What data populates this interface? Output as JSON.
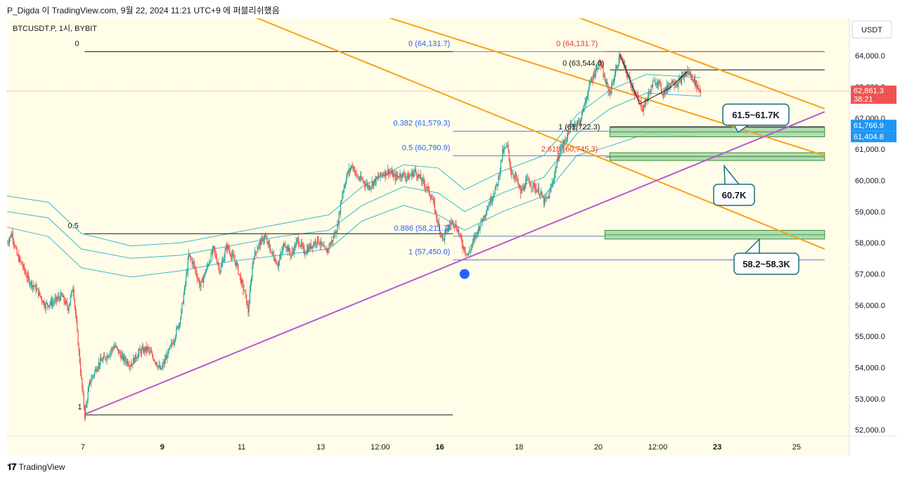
{
  "header": {
    "caption": "P_Digda 이 TradingView.com, 9월 22, 2024 11:21 UTC+9 에 퍼블리쉬했음"
  },
  "footer": {
    "brand": "TradingView",
    "logo_glyph": "𝟏𝟕"
  },
  "chart_data": {
    "type": "candlestick",
    "symbol": "BTCUSDT.P, 1시, BYBIT",
    "currency": "USDT",
    "ylim": [
      51800,
      65200
    ],
    "y_ticks": [
      64000,
      63000,
      62000,
      61000,
      60000,
      59000,
      58000,
      57000,
      56000,
      55000,
      54000,
      53000,
      52000
    ],
    "y_tick_labels": [
      "64,000.0",
      "63,000.0",
      "62,000.0",
      "61,000.0",
      "60,000.0",
      "59,000.0",
      "58,000.0",
      "57,000.0",
      "56,000.0",
      "55,000.0",
      "54,000.0",
      "53,000.0",
      "52,000.0"
    ],
    "x_ticks": [
      {
        "label": "7",
        "t": 31
      },
      {
        "label": "9",
        "t": 79
      },
      {
        "label": "11",
        "t": 127
      },
      {
        "label": "13",
        "t": 175
      },
      {
        "label": "12:00",
        "t": 211
      },
      {
        "label": "16",
        "t": 247
      },
      {
        "label": "18",
        "t": 295
      },
      {
        "label": "20",
        "t": 343
      },
      {
        "label": "12:00",
        "t": 379
      },
      {
        "label": "23",
        "t": 415
      },
      {
        "label": "25",
        "t": 463
      }
    ],
    "t_range": [
      -15,
      495
    ],
    "price_path": [
      [
        -15,
        58000
      ],
      [
        -12,
        58300
      ],
      [
        -9,
        57600
      ],
      [
        -6,
        57300
      ],
      [
        -2,
        56800
      ],
      [
        3,
        56500
      ],
      [
        8,
        56000
      ],
      [
        13,
        56100
      ],
      [
        18,
        56300
      ],
      [
        22,
        55900
      ],
      [
        25,
        56600
      ],
      [
        27,
        55400
      ],
      [
        28,
        54800
      ],
      [
        30,
        53600
      ],
      [
        32,
        52500
      ],
      [
        35,
        53500
      ],
      [
        40,
        54100
      ],
      [
        46,
        54400
      ],
      [
        50,
        54700
      ],
      [
        55,
        54300
      ],
      [
        60,
        54100
      ],
      [
        65,
        54500
      ],
      [
        70,
        54600
      ],
      [
        75,
        54200
      ],
      [
        78,
        53900
      ],
      [
        82,
        54400
      ],
      [
        86,
        54900
      ],
      [
        90,
        55600
      ],
      [
        93,
        56700
      ],
      [
        95,
        57600
      ],
      [
        98,
        57300
      ],
      [
        102,
        56600
      ],
      [
        106,
        57200
      ],
      [
        110,
        57800
      ],
      [
        114,
        57100
      ],
      [
        118,
        57900
      ],
      [
        121,
        57600
      ],
      [
        124,
        57300
      ],
      [
        127,
        56700
      ],
      [
        129,
        56400
      ],
      [
        131,
        55800
      ],
      [
        134,
        57500
      ],
      [
        137,
        57900
      ],
      [
        141,
        58200
      ],
      [
        145,
        57700
      ],
      [
        149,
        57300
      ],
      [
        153,
        58000
      ],
      [
        157,
        57600
      ],
      [
        161,
        58100
      ],
      [
        165,
        57700
      ],
      [
        169,
        57900
      ],
      [
        173,
        58100
      ],
      [
        178,
        57700
      ],
      [
        182,
        58100
      ],
      [
        185,
        58500
      ],
      [
        188,
        59600
      ],
      [
        191,
        60200
      ],
      [
        194,
        60500
      ],
      [
        197,
        60100
      ],
      [
        200,
        60000
      ],
      [
        204,
        59800
      ],
      [
        208,
        60000
      ],
      [
        212,
        60200
      ],
      [
        216,
        60300
      ],
      [
        220,
        60100
      ],
      [
        224,
        60200
      ],
      [
        228,
        60100
      ],
      [
        232,
        60300
      ],
      [
        236,
        60000
      ],
      [
        240,
        59700
      ],
      [
        243,
        59300
      ],
      [
        246,
        58600
      ],
      [
        249,
        58100
      ],
      [
        252,
        58500
      ],
      [
        255,
        58700
      ],
      [
        258,
        58400
      ],
      [
        261,
        57900
      ],
      [
        264,
        57600
      ],
      [
        267,
        58000
      ],
      [
        270,
        58400
      ],
      [
        274,
        58900
      ],
      [
        278,
        59400
      ],
      [
        282,
        59900
      ],
      [
        285,
        60900
      ],
      [
        288,
        61100
      ],
      [
        290,
        60300
      ],
      [
        293,
        60100
      ],
      [
        296,
        59600
      ],
      [
        300,
        60000
      ],
      [
        304,
        59800
      ],
      [
        308,
        59600
      ],
      [
        310,
        59300
      ],
      [
        313,
        59500
      ],
      [
        316,
        60100
      ],
      [
        318,
        60600
      ],
      [
        320,
        61000
      ],
      [
        323,
        61300
      ],
      [
        326,
        61700
      ],
      [
        329,
        61800
      ],
      [
        332,
        61900
      ],
      [
        335,
        62500
      ],
      [
        338,
        63100
      ],
      [
        341,
        63500
      ],
      [
        344,
        63800
      ],
      [
        347,
        63200
      ],
      [
        350,
        62800
      ],
      [
        353,
        63400
      ],
      [
        356,
        64000
      ],
      [
        359,
        63600
      ],
      [
        362,
        63200
      ],
      [
        365,
        62800
      ],
      [
        368,
        62500
      ],
      [
        370,
        62300
      ],
      [
        373,
        62700
      ],
      [
        376,
        63100
      ],
      [
        379,
        63200
      ],
      [
        382,
        62800
      ],
      [
        385,
        63000
      ],
      [
        388,
        63200
      ],
      [
        391,
        63100
      ],
      [
        394,
        63300
      ],
      [
        397,
        63500
      ],
      [
        400,
        63300
      ],
      [
        403,
        63000
      ],
      [
        405,
        62861
      ]
    ],
    "bands": {
      "outer_upper": [
        [
          -15,
          59500
        ],
        [
          10,
          59300
        ],
        [
          30,
          58300
        ],
        [
          60,
          57900
        ],
        [
          90,
          58000
        ],
        [
          120,
          58300
        ],
        [
          150,
          58600
        ],
        [
          180,
          58900
        ],
        [
          200,
          59800
        ],
        [
          225,
          60500
        ],
        [
          246,
          60400
        ],
        [
          262,
          59700
        ],
        [
          285,
          60300
        ],
        [
          310,
          60800
        ],
        [
          330,
          62100
        ],
        [
          350,
          62900
        ],
        [
          372,
          63400
        ],
        [
          405,
          63300
        ]
      ],
      "inner_upper": [
        [
          -15,
          59000
        ],
        [
          10,
          58800
        ],
        [
          30,
          57800
        ],
        [
          60,
          57500
        ],
        [
          90,
          57600
        ],
        [
          120,
          57900
        ],
        [
          150,
          58200
        ],
        [
          180,
          58400
        ],
        [
          200,
          59200
        ],
        [
          225,
          59800
        ],
        [
          246,
          59600
        ],
        [
          262,
          59000
        ],
        [
          285,
          59600
        ],
        [
          310,
          60100
        ],
        [
          330,
          61500
        ],
        [
          350,
          62300
        ],
        [
          372,
          62800
        ],
        [
          405,
          62700
        ]
      ],
      "middle": [
        [
          -15,
          58500
        ],
        [
          10,
          58200
        ],
        [
          30,
          57200
        ],
        [
          60,
          56900
        ],
        [
          90,
          57100
        ],
        [
          120,
          57400
        ],
        [
          150,
          57600
        ],
        [
          180,
          57800
        ],
        [
          200,
          58700
        ],
        [
          225,
          59200
        ],
        [
          246,
          58900
        ],
        [
          262,
          58400
        ],
        [
          285,
          59000
        ],
        [
          310,
          59500
        ],
        [
          330,
          60800
        ],
        [
          350,
          61100
        ],
        [
          372,
          61500
        ],
        [
          405,
          61400
        ]
      ]
    },
    "channel_lines": [
      {
        "from": [
          30,
          67500
        ],
        "to": [
          480,
          57800
        ]
      },
      {
        "from": [
          80,
          67500
        ],
        "to": [
          480,
          60800
        ]
      },
      {
        "from": [
          215,
          67500
        ],
        "to": [
          480,
          62300
        ]
      }
    ],
    "trend_line": {
      "from": [
        32,
        52500
      ],
      "to": [
        480,
        62200
      ]
    },
    "fib_sets": [
      {
        "t_start": 32,
        "t_end": 255,
        "levels": [
          {
            "label": "0",
            "price": 64131.7
          },
          {
            "label": "0.5",
            "price": 58290
          }
        ],
        "low": 52480
      },
      {
        "t_start": 255,
        "t_end": 480,
        "levels": [
          {
            "label": "0 (64,131.7)",
            "price": 64131.7
          },
          {
            "label": "0.382 (61,579.3)",
            "price": 61579.3
          },
          {
            "label": "0.5 (60,790.9)",
            "price": 60790.9
          },
          {
            "label": "0.886 (58,211.7)",
            "price": 58211.7
          },
          {
            "label": "1 (57,450.0)",
            "price": 57450.0
          }
        ]
      },
      {
        "t_start": 347,
        "t_end": 480,
        "levels": [
          {
            "label": "0 (64,131.7)",
            "price": 64131.7
          },
          {
            "label": "2.618 (60,745.3)",
            "price": 60745.3
          }
        ]
      },
      {
        "t_start": 350,
        "t_end": 480,
        "levels": [
          {
            "label": "0 (63,544.0)",
            "price": 63544.0
          },
          {
            "label": "1 (61,722.3)",
            "price": 61722.3
          }
        ]
      }
    ],
    "fib_bottom_label": "1",
    "zones": [
      {
        "label": "61.5~61.7K",
        "from": [
          350,
          61700
        ],
        "to": [
          480,
          61400
        ]
      },
      {
        "label": "60.7K",
        "from": [
          350,
          60890
        ],
        "to": [
          480,
          60640
        ]
      },
      {
        "label": "58.2~58.3K",
        "from": [
          347,
          58400
        ],
        "to": [
          480,
          58120
        ]
      }
    ],
    "marker": {
      "t": 262,
      "price": 57000
    },
    "last_price": {
      "label": "62,861.3",
      "countdown": "38:21",
      "price": 62861.3
    },
    "price_tags": [
      {
        "label": "61,766.9",
        "price": 61766.9
      },
      {
        "label": "61,404.8",
        "price": 61404.8
      }
    ]
  }
}
